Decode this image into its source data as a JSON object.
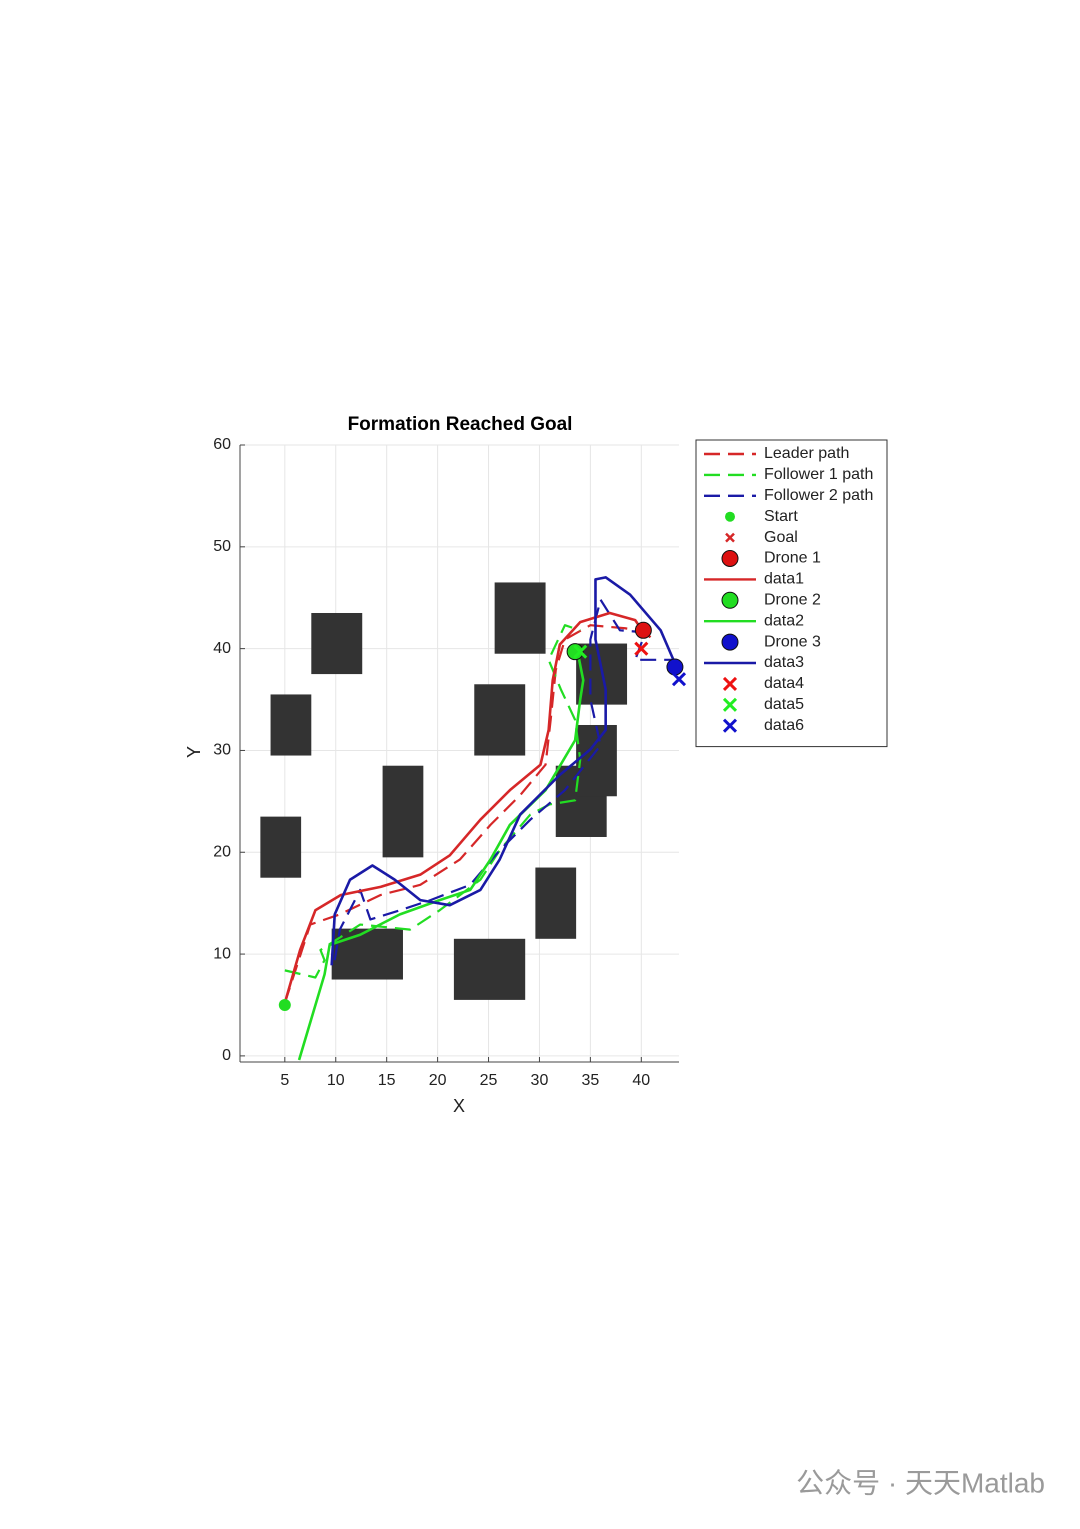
{
  "chart_data": {
    "type": "path-plot",
    "title": "Formation Reached Goal",
    "xlabel": "X",
    "ylabel": "Y",
    "xlim": [
      0.6,
      43.7
    ],
    "ylim": [
      -0.6,
      60
    ],
    "xticks": [
      5,
      10,
      15,
      20,
      25,
      30,
      35,
      40
    ],
    "yticks": [
      0,
      10,
      20,
      30,
      40,
      50,
      60
    ],
    "grid": true,
    "obstacle_color": "#333333",
    "obstacles": [
      {
        "x": 7.6,
        "y": 37.5,
        "width": 5,
        "height": 6
      },
      {
        "x": 3.6,
        "y": 29.5,
        "width": 4,
        "height": 6
      },
      {
        "x": 2.6,
        "y": 17.5,
        "width": 4,
        "height": 6
      },
      {
        "x": 14.6,
        "y": 19.5,
        "width": 4,
        "height": 9
      },
      {
        "x": 9.6,
        "y": 7.5,
        "width": 7,
        "height": 5
      },
      {
        "x": 21.6,
        "y": 5.5,
        "width": 7,
        "height": 6
      },
      {
        "x": 25.6,
        "y": 39.5,
        "width": 5,
        "height": 7
      },
      {
        "x": 23.6,
        "y": 29.5,
        "width": 5,
        "height": 7
      },
      {
        "x": 29.6,
        "y": 11.5,
        "width": 4,
        "height": 7
      },
      {
        "x": 31.6,
        "y": 21.5,
        "width": 5,
        "height": 7
      },
      {
        "x": 33.6,
        "y": 25.5,
        "width": 4,
        "height": 7
      },
      {
        "x": 33.6,
        "y": 34.5,
        "width": 5,
        "height": 6
      }
    ],
    "series": [
      {
        "name": "Leader path",
        "color": "#d62728",
        "style": "dashed",
        "x": [
          5,
          7.5,
          10.4,
          14.4,
          18.3,
          22.2,
          25.2,
          28.1,
          30.6,
          31.1,
          31.6,
          32.5,
          35,
          38.4,
          40.9
        ],
        "y": [
          5.2,
          12.9,
          13.9,
          15.8,
          16.8,
          19.3,
          22.7,
          25.6,
          28.6,
          33,
          37.9,
          40.9,
          42.3,
          42,
          41.6
        ]
      },
      {
        "name": "Follower 1 path",
        "color": "#22dd22",
        "style": "dashed",
        "x": [
          5,
          8,
          8.9,
          8.5,
          12.4,
          17.3,
          20.2,
          24.2,
          26.1,
          29.1,
          31,
          33.5,
          34,
          33.5,
          32.1,
          30.9,
          32.5,
          34
        ],
        "y": [
          8.4,
          7.7,
          9.4,
          10.4,
          12.9,
          12.4,
          14.3,
          17.3,
          20.2,
          23.7,
          24.7,
          25.1,
          29.1,
          33,
          36,
          38.9,
          42.3,
          41.8
        ]
      },
      {
        "name": "Follower 2 path",
        "color": "#1a1aa6",
        "style": "dashed",
        "x": [
          9.9,
          10.4,
          12.4,
          13.4,
          16.3,
          19.3,
          23.2,
          26.1,
          29.1,
          32.5,
          36,
          35,
          35,
          36,
          37.9,
          40.4,
          39.4,
          43.3
        ],
        "y": [
          9.4,
          12.4,
          16.3,
          13.4,
          14.3,
          15.3,
          16.8,
          20.2,
          23.2,
          26.1,
          30.5,
          35,
          40.9,
          44.8,
          41.8,
          41.6,
          38.9,
          38.9
        ]
      },
      {
        "name": "Start",
        "color": "#22dd22",
        "style": "dot",
        "x": [
          5
        ],
        "y": [
          5
        ]
      },
      {
        "name": "Goal",
        "color": "#d62728",
        "style": "small-cross",
        "x": [
          40.5
        ],
        "y": [
          41.5
        ]
      },
      {
        "name": "Drone 1",
        "color": "#dd1111",
        "style": "circle",
        "x": [
          40.2
        ],
        "y": [
          41.8
        ]
      },
      {
        "name": "data1",
        "color": "#d62728",
        "style": "solid",
        "x": [
          5,
          6.5,
          8,
          10.5,
          14.4,
          18.3,
          21.2,
          24.2,
          27.1,
          30.1,
          30.9,
          31.3,
          32,
          34,
          36.9,
          39.4,
          40.2
        ],
        "y": [
          5.2,
          10.4,
          14.3,
          15.8,
          16.6,
          17.8,
          19.7,
          23.2,
          26.1,
          28.6,
          32,
          36.9,
          40.4,
          42.6,
          43.5,
          42.8,
          41.6
        ]
      },
      {
        "name": "Drone 2",
        "color": "#22dd22",
        "style": "circle",
        "x": [
          33.5
        ],
        "y": [
          39.7
        ]
      },
      {
        "name": "data2",
        "color": "#22dd22",
        "style": "solid",
        "x": [
          6.4,
          8.9,
          9.4,
          12.4,
          16.3,
          20.2,
          23.2,
          25.2,
          27.1,
          30.6,
          33.5,
          34,
          34.3,
          33.8
        ],
        "y": [
          -0.4,
          8,
          10.9,
          11.9,
          13.9,
          15.3,
          16.3,
          19.3,
          22.7,
          26.1,
          31,
          35,
          36.9,
          39.4
        ]
      },
      {
        "name": "Drone 3",
        "color": "#1111cc",
        "style": "circle",
        "x": [
          43.3
        ],
        "y": [
          38.2
        ]
      },
      {
        "name": "data3",
        "color": "#1a1aa6",
        "style": "solid",
        "x": [
          9.6,
          9.9,
          11.4,
          13.6,
          15.8,
          18.3,
          21.2,
          24.2,
          26.1,
          28.1,
          32,
          35,
          36.5,
          36.5,
          35.5,
          35.5,
          36.5,
          38.9,
          41.9,
          43.5
        ],
        "y": [
          8.9,
          13.9,
          17.3,
          18.7,
          17.3,
          15.3,
          14.8,
          16.3,
          19.3,
          23.7,
          27.6,
          30.1,
          32,
          36,
          40.9,
          46.8,
          47,
          45.3,
          41.8,
          38.1
        ]
      },
      {
        "name": "data4",
        "color": "#ee1111",
        "style": "cross",
        "x": [
          40
        ],
        "y": [
          40
        ]
      },
      {
        "name": "data5",
        "color": "#22ee22",
        "style": "cross",
        "x": [
          34
        ],
        "y": [
          39.7
        ]
      },
      {
        "name": "data6",
        "color": "#1111cc",
        "style": "cross",
        "x": [
          43.7
        ],
        "y": [
          37
        ]
      }
    ]
  },
  "watermark": "公众号 · 天天Matlab"
}
